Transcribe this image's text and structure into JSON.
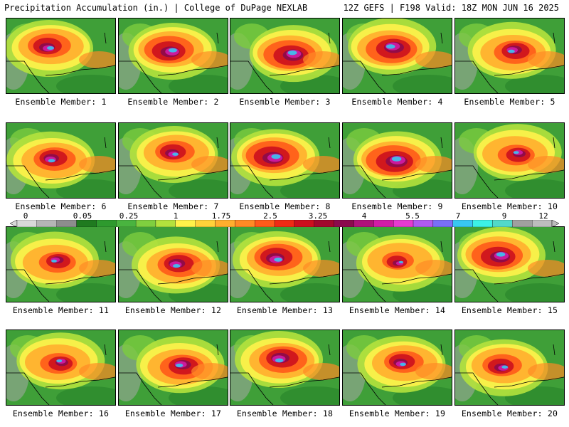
{
  "header": {
    "left": "Precipitation Accumulation (in.) | College of DuPage NEXLAB",
    "right": "12Z GEFS | F198 Valid: 18Z MON JUN 16 2025"
  },
  "colorbar": {
    "labels": [
      "0",
      "0.05",
      "0.25",
      "1",
      "1.75",
      "2.5",
      "3.25",
      "4",
      "5.5",
      "7",
      "9",
      "12"
    ],
    "colors": [
      "#d9d9d9",
      "#b5b5b5",
      "#8d8d8d",
      "#1f7a1f",
      "#2e9a2e",
      "#49b43f",
      "#7fcf3f",
      "#b4e23d",
      "#fff24a",
      "#ffd23a",
      "#ffae2e",
      "#ff8a25",
      "#ff5a1a",
      "#f02a14",
      "#cc0f1e",
      "#a2082d",
      "#8b0a4d",
      "#b0127a",
      "#d21ca6",
      "#e63ad0",
      "#b05af0",
      "#7a6ff7",
      "#38c7f2",
      "#3cf2e6",
      "#52d9c8",
      "#a0a0a0",
      "#bdbdbd"
    ]
  },
  "panels": [
    {
      "label": "Ensemble Member: 1",
      "intensity": 0.62
    },
    {
      "label": "Ensemble Member: 2",
      "intensity": 0.75
    },
    {
      "label": "Ensemble Member: 3",
      "intensity": 0.8
    },
    {
      "label": "Ensemble Member: 4",
      "intensity": 0.78
    },
    {
      "label": "Ensemble Member: 5",
      "intensity": 0.6
    },
    {
      "label": "Ensemble Member: 6",
      "intensity": 0.6
    },
    {
      "label": "Ensemble Member: 7",
      "intensity": 0.55
    },
    {
      "label": "Ensemble Member: 8",
      "intensity": 0.82
    },
    {
      "label": "Ensemble Member: 9",
      "intensity": 0.85
    },
    {
      "label": "Ensemble Member: 10",
      "intensity": 0.5
    },
    {
      "label": "Ensemble Member: 11",
      "intensity": 0.5
    },
    {
      "label": "Ensemble Member: 12",
      "intensity": 0.65
    },
    {
      "label": "Ensemble Member: 13",
      "intensity": 0.72
    },
    {
      "label": "Ensemble Member: 14",
      "intensity": 0.4
    },
    {
      "label": "Ensemble Member: 15",
      "intensity": 0.78
    },
    {
      "label": "Ensemble Member: 16",
      "intensity": 0.5
    },
    {
      "label": "Ensemble Member: 17",
      "intensity": 0.65
    },
    {
      "label": "Ensemble Member: 18",
      "intensity": 0.72
    },
    {
      "label": "Ensemble Member: 19",
      "intensity": 0.55
    },
    {
      "label": "Ensemble Member: 20",
      "intensity": 0.55
    }
  ]
}
